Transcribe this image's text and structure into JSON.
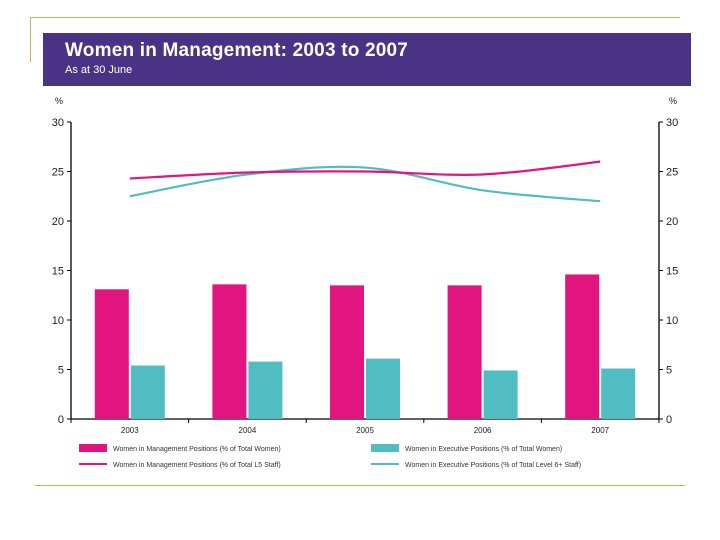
{
  "chart_data": {
    "type": "bar",
    "title": "Women in Management: 2003 to 2007",
    "subtitle": "As at 30 June",
    "categories": [
      "2003",
      "2004",
      "2005",
      "2006",
      "2007"
    ],
    "left_axis_unit": "%",
    "right_axis_unit": "%",
    "ylim": [
      0,
      30
    ],
    "yticks": [
      0,
      5,
      10,
      15,
      20,
      25,
      30
    ],
    "bar_series": [
      {
        "name": "Women in Management Positions (% of Total Women)",
        "color": "#e2147f",
        "values": [
          13.1,
          13.6,
          13.5,
          13.5,
          14.6
        ]
      },
      {
        "name": "Women in Executive Positions (% of Total Women)",
        "color": "#4fbdc2",
        "values": [
          5.4,
          5.8,
          6.1,
          4.9,
          5.1
        ]
      }
    ],
    "line_series": [
      {
        "name": "Women in Management Positions (% of Total L5 Staff)",
        "color": "#e2147f",
        "values": [
          24.3,
          24.9,
          25.0,
          24.7,
          26.0
        ]
      },
      {
        "name": "Women in Executive Positions (% of Total Level 6+ Staff)",
        "color": "#4fbdc2",
        "values": [
          22.5,
          24.7,
          25.4,
          23.1,
          22.0
        ]
      }
    ]
  }
}
